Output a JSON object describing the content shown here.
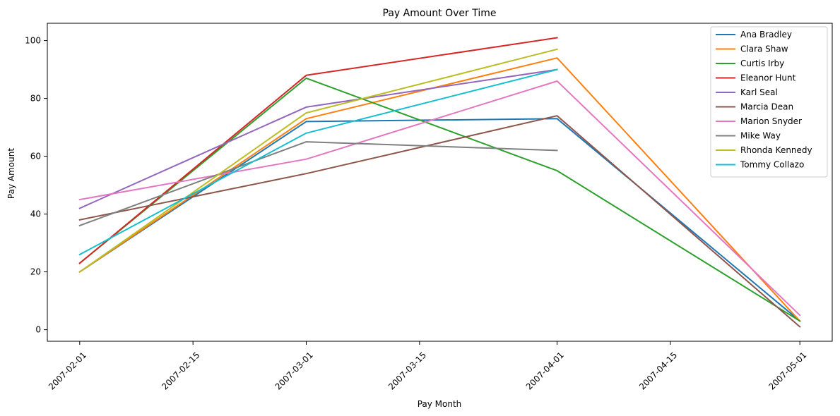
{
  "chart_data": {
    "type": "line",
    "title": "Pay Amount Over Time",
    "xlabel": "Pay Month",
    "ylabel": "Pay Amount",
    "x_ticks": [
      "2007-02-01",
      "2007-02-15",
      "2007-03-01",
      "2007-03-15",
      "2007-04-01",
      "2007-04-15",
      "2007-05-01"
    ],
    "y_ticks": [
      0,
      20,
      40,
      60,
      80,
      100
    ],
    "ylim": [
      -4,
      106
    ],
    "xlim": [
      "2007-01-28",
      "2007-05-05"
    ],
    "grid": false,
    "legend_position": "upper right",
    "series": [
      {
        "name": "Ana Bradley",
        "color": "#1f77b4",
        "points": [
          [
            "2007-02-01",
            20
          ],
          [
            "2007-03-01",
            72
          ],
          [
            "2007-04-01",
            73
          ],
          [
            "2007-05-01",
            3
          ]
        ]
      },
      {
        "name": "Clara Shaw",
        "color": "#ff7f0e",
        "points": [
          [
            "2007-02-01",
            20
          ],
          [
            "2007-03-01",
            73
          ],
          [
            "2007-04-01",
            94
          ],
          [
            "2007-05-01",
            3
          ]
        ]
      },
      {
        "name": "Curtis Irby",
        "color": "#2ca02c",
        "points": [
          [
            "2007-02-01",
            23
          ],
          [
            "2007-03-01",
            87
          ],
          [
            "2007-04-01",
            55
          ],
          [
            "2007-05-01",
            3
          ]
        ]
      },
      {
        "name": "Eleanor Hunt",
        "color": "#d62728",
        "points": [
          [
            "2007-02-01",
            23
          ],
          [
            "2007-03-01",
            88
          ],
          [
            "2007-04-01",
            101
          ]
        ]
      },
      {
        "name": "Karl Seal",
        "color": "#9467bd",
        "points": [
          [
            "2007-02-01",
            42
          ],
          [
            "2007-03-01",
            77
          ],
          [
            "2007-04-01",
            90
          ]
        ]
      },
      {
        "name": "Marcia Dean",
        "color": "#8c564b",
        "points": [
          [
            "2007-02-01",
            38
          ],
          [
            "2007-03-01",
            54
          ],
          [
            "2007-04-01",
            74
          ],
          [
            "2007-05-01",
            1
          ]
        ]
      },
      {
        "name": "Marion Snyder",
        "color": "#e377c2",
        "points": [
          [
            "2007-02-01",
            45
          ],
          [
            "2007-03-01",
            59
          ],
          [
            "2007-04-01",
            86
          ],
          [
            "2007-05-01",
            5
          ]
        ]
      },
      {
        "name": "Mike Way",
        "color": "#7f7f7f",
        "points": [
          [
            "2007-02-01",
            36
          ],
          [
            "2007-03-01",
            65
          ],
          [
            "2007-04-01",
            62
          ]
        ]
      },
      {
        "name": "Rhonda Kennedy",
        "color": "#bcbd22",
        "points": [
          [
            "2007-02-01",
            20
          ],
          [
            "2007-03-01",
            75
          ],
          [
            "2007-04-01",
            97
          ]
        ]
      },
      {
        "name": "Tommy Collazo",
        "color": "#17becf",
        "points": [
          [
            "2007-02-01",
            26
          ],
          [
            "2007-03-01",
            68
          ],
          [
            "2007-04-01",
            90
          ]
        ]
      }
    ]
  }
}
